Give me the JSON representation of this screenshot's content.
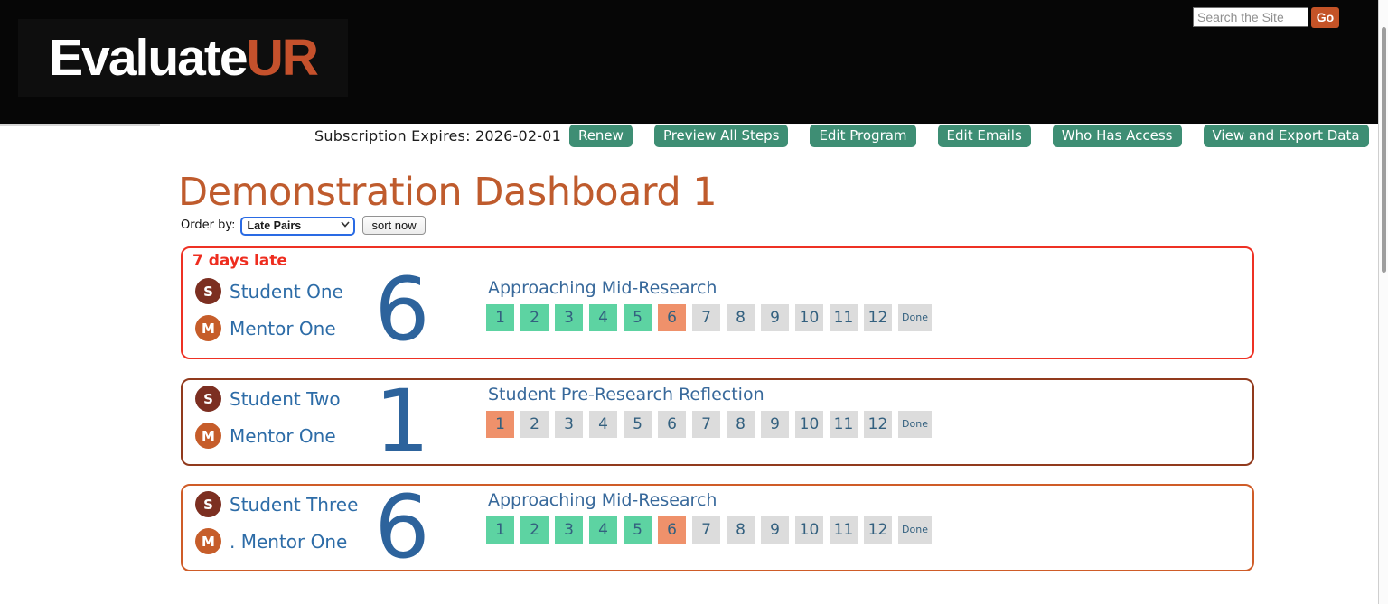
{
  "header": {
    "logo_white": "Evaluate",
    "logo_orange": "UR",
    "search_placeholder": "Search the Site",
    "go_label": "Go"
  },
  "subscription_bar": {
    "expires_text": "Subscription Expires: 2026-02-01",
    "buttons": {
      "renew": "Renew",
      "preview": "Preview All Steps",
      "edit_program": "Edit Program",
      "edit_emails": "Edit Emails",
      "who_has_access": "Who Has Access",
      "view_export": "View and Export Data"
    }
  },
  "page": {
    "title": "Demonstration Dashboard 1",
    "order_by_label": "Order by:",
    "order_by_value": "Late Pairs",
    "sort_button_label": "sort now"
  },
  "cards": [
    {
      "late_label": "7 days late",
      "student": {
        "initial": "S",
        "name": "Student One"
      },
      "mentor": {
        "initial": "M",
        "name": "Mentor One"
      },
      "current_step": "6",
      "step_title": "Approaching Mid-Research",
      "steps": [
        {
          "label": "1",
          "state": "complete"
        },
        {
          "label": "2",
          "state": "complete"
        },
        {
          "label": "3",
          "state": "complete"
        },
        {
          "label": "4",
          "state": "complete"
        },
        {
          "label": "5",
          "state": "complete"
        },
        {
          "label": "6",
          "state": "current"
        },
        {
          "label": "7",
          "state": "todo"
        },
        {
          "label": "8",
          "state": "todo"
        },
        {
          "label": "9",
          "state": "todo"
        },
        {
          "label": "10",
          "state": "todo"
        },
        {
          "label": "11",
          "state": "todo"
        },
        {
          "label": "12",
          "state": "todo"
        },
        {
          "label": "Done",
          "state": "todo"
        }
      ]
    },
    {
      "late_label": "",
      "student": {
        "initial": "S",
        "name": "Student Two"
      },
      "mentor": {
        "initial": "M",
        "name": "Mentor One"
      },
      "current_step": "1",
      "step_title": "Student Pre-Research Reflection",
      "steps": [
        {
          "label": "1",
          "state": "current"
        },
        {
          "label": "2",
          "state": "todo"
        },
        {
          "label": "3",
          "state": "todo"
        },
        {
          "label": "4",
          "state": "todo"
        },
        {
          "label": "5",
          "state": "todo"
        },
        {
          "label": "6",
          "state": "todo"
        },
        {
          "label": "7",
          "state": "todo"
        },
        {
          "label": "8",
          "state": "todo"
        },
        {
          "label": "9",
          "state": "todo"
        },
        {
          "label": "10",
          "state": "todo"
        },
        {
          "label": "11",
          "state": "todo"
        },
        {
          "label": "12",
          "state": "todo"
        },
        {
          "label": "Done",
          "state": "todo"
        }
      ]
    },
    {
      "late_label": "",
      "student": {
        "initial": "S",
        "name": "Student Three"
      },
      "mentor": {
        "initial": "M",
        "name": ". Mentor One"
      },
      "current_step": "6",
      "step_title": "Approaching Mid-Research",
      "steps": [
        {
          "label": "1",
          "state": "complete"
        },
        {
          "label": "2",
          "state": "complete"
        },
        {
          "label": "3",
          "state": "complete"
        },
        {
          "label": "4",
          "state": "complete"
        },
        {
          "label": "5",
          "state": "complete"
        },
        {
          "label": "6",
          "state": "current"
        },
        {
          "label": "7",
          "state": "todo"
        },
        {
          "label": "8",
          "state": "todo"
        },
        {
          "label": "9",
          "state": "todo"
        },
        {
          "label": "10",
          "state": "todo"
        },
        {
          "label": "11",
          "state": "todo"
        },
        {
          "label": "12",
          "state": "todo"
        },
        {
          "label": "Done",
          "state": "todo"
        }
      ]
    }
  ],
  "colors": {
    "accent_orange": "#c5512c",
    "button_green": "#3e8e74",
    "late_red": "#ee3124",
    "card_late_border": "#ee3124",
    "card_dark_border": "#913a1d",
    "card_orange_border": "#cf5c28",
    "step_complete": "#5dd3a2",
    "step_current": "#ef916b",
    "step_todo": "#dcdcdc",
    "name_blue": "#2d6ca7",
    "number_blue": "#2d639c",
    "avatar_student": "#7c2f21",
    "avatar_mentor": "#c65d2a"
  }
}
